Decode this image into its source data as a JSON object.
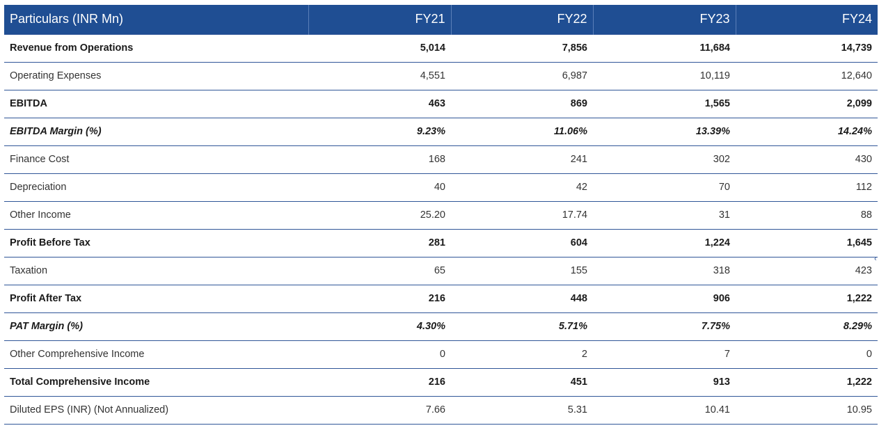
{
  "table": {
    "headers": [
      "Particulars (INR Mn)",
      "FY21",
      "FY22",
      "FY23",
      "FY24"
    ],
    "rows": [
      {
        "label": "Revenue from Operations",
        "style": "bold",
        "values": [
          "5,014",
          "7,856",
          "11,684",
          "14,739"
        ]
      },
      {
        "label": "Operating Expenses",
        "style": "plain",
        "values": [
          "4,551",
          "6,987",
          "10,119",
          "12,640"
        ]
      },
      {
        "label": "EBITDA",
        "style": "bold",
        "values": [
          "463",
          "869",
          "1,565",
          "2,099"
        ]
      },
      {
        "label": "EBITDA Margin (%)",
        "style": "italic-bold",
        "values": [
          "9.23%",
          "11.06%",
          "13.39%",
          "14.24%"
        ]
      },
      {
        "label": "Finance Cost",
        "style": "plain",
        "values": [
          "168",
          "241",
          "302",
          "430"
        ]
      },
      {
        "label": "Depreciation",
        "style": "plain",
        "values": [
          "40",
          "42",
          "70",
          "112"
        ]
      },
      {
        "label": "Other Income",
        "style": "plain",
        "values": [
          "25.20",
          "17.74",
          "31",
          "88"
        ]
      },
      {
        "label": "Profit Before Tax",
        "style": "bold",
        "values": [
          "281",
          "604",
          "1,224",
          "1,645"
        ]
      },
      {
        "label": "Taxation",
        "style": "plain",
        "values": [
          "65",
          "155",
          "318",
          "423"
        ]
      },
      {
        "label": "Profit After Tax",
        "style": "bold",
        "values": [
          "216",
          "448",
          "906",
          "1,222"
        ]
      },
      {
        "label": "PAT Margin (%)",
        "style": "italic-bold",
        "values": [
          "4.30%",
          "5.71%",
          "7.75%",
          "8.29%"
        ]
      },
      {
        "label": "Other Comprehensive Income",
        "style": "plain",
        "values": [
          "0",
          "2",
          "7",
          "0"
        ]
      },
      {
        "label": "Total Comprehensive Income",
        "style": "bold",
        "values": [
          "216",
          "451",
          "913",
          "1,222"
        ]
      },
      {
        "label": "Diluted EPS (INR) (Not Annualized)",
        "style": "plain",
        "values": [
          "7.66",
          "5.31",
          "10.41",
          "10.95"
        ]
      }
    ]
  },
  "colors": {
    "header_bg": "#1f4e93",
    "header_text": "#ffffff",
    "row_border": "#2f5597"
  },
  "edge_glyph": "‹"
}
